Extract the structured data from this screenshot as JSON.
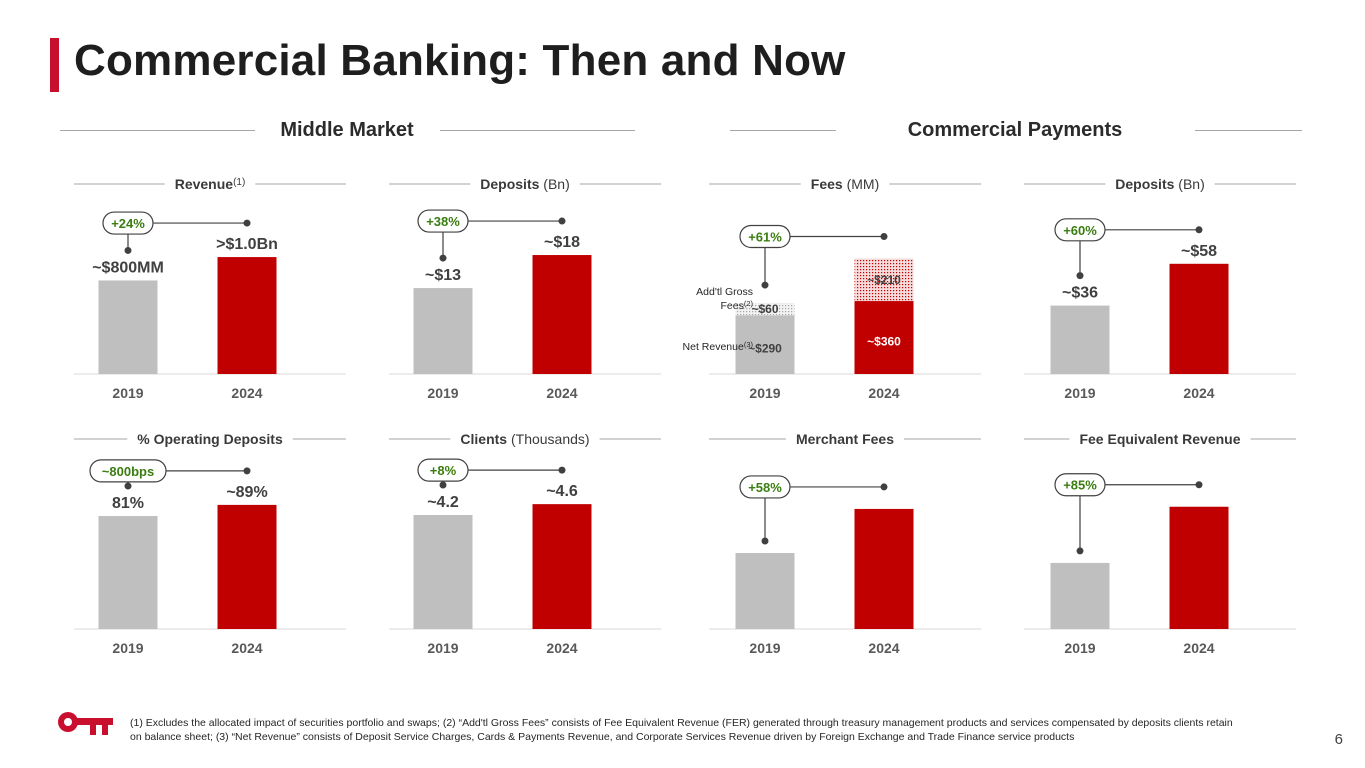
{
  "title": "Commercial Banking: Then and Now",
  "sections": [
    {
      "label": "Middle Market"
    },
    {
      "label": "Commercial Payments"
    }
  ],
  "colors": {
    "gray": "#bfbfbf",
    "red": "#c00000",
    "green": "#3a7d10",
    "accent": "#c8102e"
  },
  "chart_data": [
    {
      "type": "bar",
      "title": "Revenue",
      "title_sup": "(1)",
      "title_suffix": "",
      "categories": [
        "2019",
        "2024"
      ],
      "values": [
        800,
        1000
      ],
      "value_labels": [
        "~$800MM",
        ">$1.0Bn"
      ],
      "change_label": "+24%",
      "ylim": [
        0,
        1300
      ]
    },
    {
      "type": "bar",
      "title": "Deposits",
      "title_sup": "",
      "title_suffix": " (Bn)",
      "categories": [
        "2019",
        "2024"
      ],
      "values": [
        13,
        18
      ],
      "value_labels": [
        "~$13",
        "~$18"
      ],
      "change_label": "+38%",
      "ylim": [
        0,
        23
      ]
    },
    {
      "type": "bar",
      "stacked": true,
      "title": "Fees",
      "title_sup": "",
      "title_suffix": " (MM)",
      "categories": [
        "2019",
        "2024"
      ],
      "series": [
        {
          "name": "Net Revenue",
          "sup": "(3)",
          "values": [
            290,
            360
          ],
          "value_labels": [
            "~$290",
            "~$360"
          ]
        },
        {
          "name": "Add'tl Gross Fees",
          "sup": "(2)",
          "values": [
            60,
            210
          ],
          "value_labels": [
            "~$60",
            "~$210"
          ]
        }
      ],
      "change_label": "+61%",
      "ylim": [
        0,
        750
      ]
    },
    {
      "type": "bar",
      "title": "Deposits",
      "title_sup": "",
      "title_suffix": " (Bn)",
      "categories": [
        "2019",
        "2024"
      ],
      "values": [
        36,
        58
      ],
      "value_labels": [
        "~$36",
        "~$58"
      ],
      "change_label": "+60%",
      "ylim": [
        0,
        80
      ]
    },
    {
      "type": "bar",
      "title": "% Operating Deposits",
      "title_sup": "",
      "title_suffix": "",
      "categories": [
        "2019",
        "2024"
      ],
      "values": [
        81,
        89
      ],
      "value_labels": [
        "81%",
        "~89%"
      ],
      "change_label": "~800bps",
      "ylim": [
        0,
        109
      ]
    },
    {
      "type": "bar",
      "title": "Clients",
      "title_sup": "",
      "title_suffix": " (Thousands)",
      "categories": [
        "2019",
        "2024"
      ],
      "values": [
        4.2,
        4.6
      ],
      "value_labels": [
        "~4.2",
        "~4.6"
      ],
      "change_label": "+8%",
      "ylim": [
        0,
        5.6
      ]
    },
    {
      "type": "bar",
      "title": "Merchant Fees",
      "title_sup": "",
      "title_suffix": "",
      "categories": [
        "2019",
        "2024"
      ],
      "values": [
        1.0,
        1.58
      ],
      "value_labels": [
        "",
        ""
      ],
      "change_label": "+58%",
      "ylim": [
        0,
        2.0
      ]
    },
    {
      "type": "bar",
      "title": "Fee Equivalent Revenue",
      "title_sup": "",
      "title_suffix": "",
      "categories": [
        "2019",
        "2024"
      ],
      "values": [
        1.0,
        1.85
      ],
      "value_labels": [
        "",
        ""
      ],
      "change_label": "+85%",
      "ylim": [
        0,
        2.3
      ]
    }
  ],
  "footnote": "(1) Excludes the allocated impact of securities portfolio and swaps; (2) “Add'tl Gross Fees” consists of Fee Equivalent Revenue (FER) generated through treasury management products and services compensated by deposits clients retain on balance sheet; (3) “Net Revenue” consists of Deposit Service Charges, Cards & Payments Revenue, and Corporate Services Revenue driven by Foreign Exchange and Trade Finance service products",
  "page_number": "6"
}
